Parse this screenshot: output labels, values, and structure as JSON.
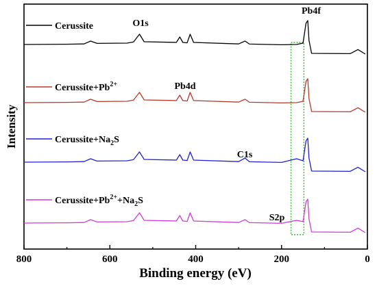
{
  "chart_data": {
    "type": "line",
    "xlabel": "Binding energy (eV)",
    "ylabel": "Intensity",
    "xlim": [
      800,
      0
    ],
    "x_reversed": true,
    "xticks": [
      800,
      600,
      400,
      200,
      0
    ],
    "yticks_shown": false,
    "grid": false,
    "legend": "inline-left",
    "peak_labels": [
      {
        "text": "O1s",
        "x": 531
      },
      {
        "text": "Pb4d",
        "x": 420
      },
      {
        "text": "C1s",
        "x": 285
      },
      {
        "text": "S2p",
        "x": 162
      },
      {
        "text": "Pb4f",
        "x": 140
      }
    ],
    "highlight_band": {
      "x": [
        178,
        148
      ],
      "style": "dotted",
      "color": "#3ab23a"
    },
    "series": [
      {
        "name": "Cerussite",
        "color": "#000000",
        "baseline": 1.0,
        "x": [
          800,
          700,
          660,
          645,
          630,
          560,
          545,
          531,
          520,
          445,
          437,
          430,
          420,
          413,
          405,
          300,
          285,
          275,
          200,
          165,
          150,
          143,
          139,
          136,
          130,
          40,
          22,
          5
        ],
        "y": [
          1.0,
          1.02,
          1.04,
          1.25,
          1.08,
          1.1,
          1.18,
          1.75,
          1.2,
          1.15,
          1.55,
          1.15,
          1.12,
          1.75,
          1.15,
          1.04,
          1.25,
          1.03,
          0.98,
          1.0,
          1.1,
          2.55,
          2.75,
          1.3,
          0.35,
          0.33,
          0.63,
          0.3
        ]
      },
      {
        "name": "Cerussite+Pb2+",
        "color": "#b5392a",
        "baseline": 1.0,
        "x": [
          800,
          700,
          660,
          645,
          630,
          560,
          545,
          531,
          520,
          445,
          437,
          430,
          420,
          413,
          405,
          300,
          285,
          275,
          200,
          165,
          150,
          143,
          139,
          136,
          130,
          40,
          22,
          5
        ],
        "y": [
          1.0,
          1.02,
          1.04,
          1.25,
          1.08,
          1.1,
          1.18,
          1.75,
          1.2,
          1.15,
          1.55,
          1.15,
          1.12,
          1.75,
          1.15,
          1.04,
          1.25,
          1.03,
          0.98,
          1.0,
          1.1,
          2.55,
          2.75,
          1.3,
          0.35,
          0.33,
          0.63,
          0.3
        ]
      },
      {
        "name": "Cerussite+Na2S",
        "color": "#1f1fd6",
        "baseline": 1.0,
        "x": [
          800,
          700,
          660,
          645,
          630,
          560,
          545,
          531,
          520,
          445,
          437,
          430,
          420,
          413,
          405,
          300,
          285,
          275,
          200,
          165,
          150,
          143,
          139,
          136,
          130,
          40,
          22,
          5
        ],
        "y": [
          1.0,
          1.02,
          1.04,
          1.25,
          1.08,
          1.1,
          1.18,
          1.75,
          1.2,
          1.15,
          1.55,
          1.15,
          1.12,
          1.75,
          1.15,
          1.04,
          1.3,
          1.03,
          0.98,
          1.25,
          1.1,
          2.55,
          2.75,
          1.3,
          0.35,
          0.33,
          0.63,
          0.3
        ]
      },
      {
        "name": "Cerussite+Pb2++Na2S",
        "color": "#d03ad6",
        "baseline": 1.0,
        "x": [
          800,
          700,
          660,
          645,
          630,
          560,
          545,
          531,
          520,
          445,
          437,
          430,
          420,
          413,
          405,
          300,
          285,
          275,
          200,
          165,
          150,
          143,
          139,
          136,
          130,
          40,
          22,
          5
        ],
        "y": [
          1.0,
          1.02,
          1.04,
          1.25,
          1.08,
          1.1,
          1.18,
          1.75,
          1.2,
          1.15,
          1.55,
          1.15,
          1.12,
          1.75,
          1.15,
          1.04,
          1.25,
          1.03,
          0.98,
          1.2,
          1.1,
          2.55,
          2.75,
          1.3,
          0.35,
          0.33,
          0.63,
          0.3
        ]
      }
    ],
    "legend_entries": [
      {
        "base": "Cerussite",
        "sup": "",
        "mid": "",
        "sub": "",
        "tail": ""
      },
      {
        "base": "Cerussite+Pb",
        "sup": "2+",
        "mid": "",
        "sub": "",
        "tail": ""
      },
      {
        "base": "Cerussite+Na",
        "sup": "",
        "mid": "",
        "sub": "2",
        "tail": "S"
      },
      {
        "base": "Cerussite+Pb",
        "sup": "2+",
        "mid": "+Na",
        "sub": "2",
        "tail": "S"
      }
    ]
  }
}
